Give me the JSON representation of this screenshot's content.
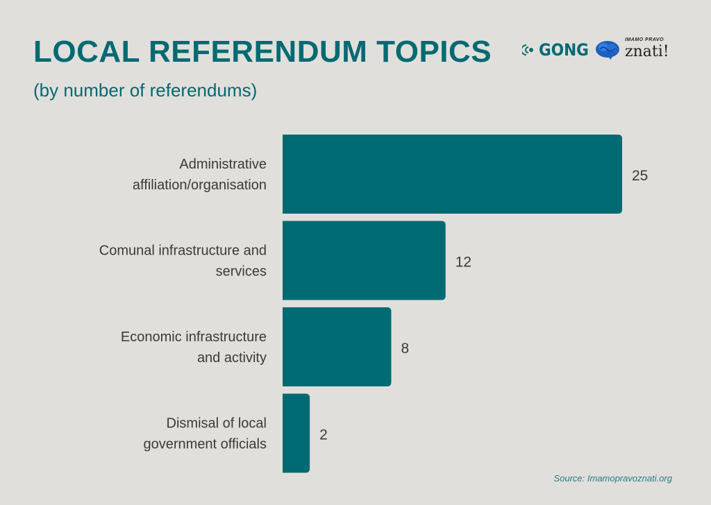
{
  "title": "LOCAL REFERENDUM TOPICS",
  "subtitle": "(by number of referendums)",
  "logos": {
    "gong": "GONG",
    "znati_small": "IMAMO PRAVO",
    "znati_big": "znati!"
  },
  "source": "Source: Imamopravoznati.org",
  "colors": {
    "bar": "#006a73",
    "title": "#006a73",
    "background": "#e1dfdb"
  },
  "chart_data": {
    "type": "bar",
    "orientation": "horizontal",
    "categories": [
      [
        "Administrative",
        "affiliation/organisation"
      ],
      [
        "Comunal infrastructure and",
        "services"
      ],
      [
        "Economic infrastructure",
        "and activity"
      ],
      [
        "Dismisal of local",
        "government officials"
      ]
    ],
    "values": [
      25,
      12,
      8,
      2
    ],
    "data_labels": [
      "25",
      "12",
      "8",
      "2"
    ],
    "title": "LOCAL REFERENDUM TOPICS",
    "xlabel": "",
    "ylabel": "",
    "xlim": [
      0,
      25
    ],
    "grid": false,
    "legend": "none"
  }
}
